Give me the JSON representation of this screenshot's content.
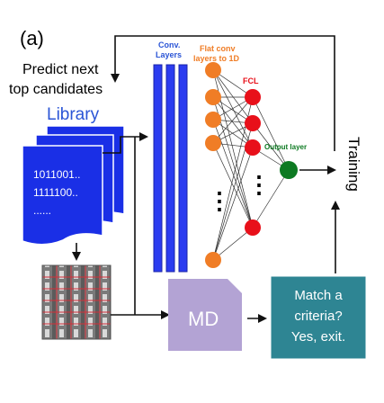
{
  "panel_label": "(a)",
  "predict_label": {
    "line1": "Predict next",
    "line2": "top candidates"
  },
  "library": {
    "title": "Library",
    "code_lines": [
      "1011001..",
      "1111100..",
      "......"
    ]
  },
  "network": {
    "conv_label": {
      "line1": "Conv.",
      "line2": "Layers"
    },
    "flat_label": {
      "line1": "Flat conv",
      "line2": "layers to 1D"
    },
    "fcl_label": "FCL",
    "output_label": "Output layer",
    "dots": "⋮"
  },
  "training_label": "Training",
  "md_label": "MD",
  "criteria_box": {
    "line1": "Match a",
    "line2": "criteria?",
    "line3": "Yes, exit."
  },
  "colors": {
    "conv_blue": "#2b3cf0",
    "library_blue": "#1a2fe6",
    "orange_node": "#f07d26",
    "red_node": "#e8101a",
    "green_node": "#0d7a22",
    "md_purple": "#b3a3d4",
    "criteria_teal": "#2e8593",
    "label_blue": "#2b55d6"
  }
}
